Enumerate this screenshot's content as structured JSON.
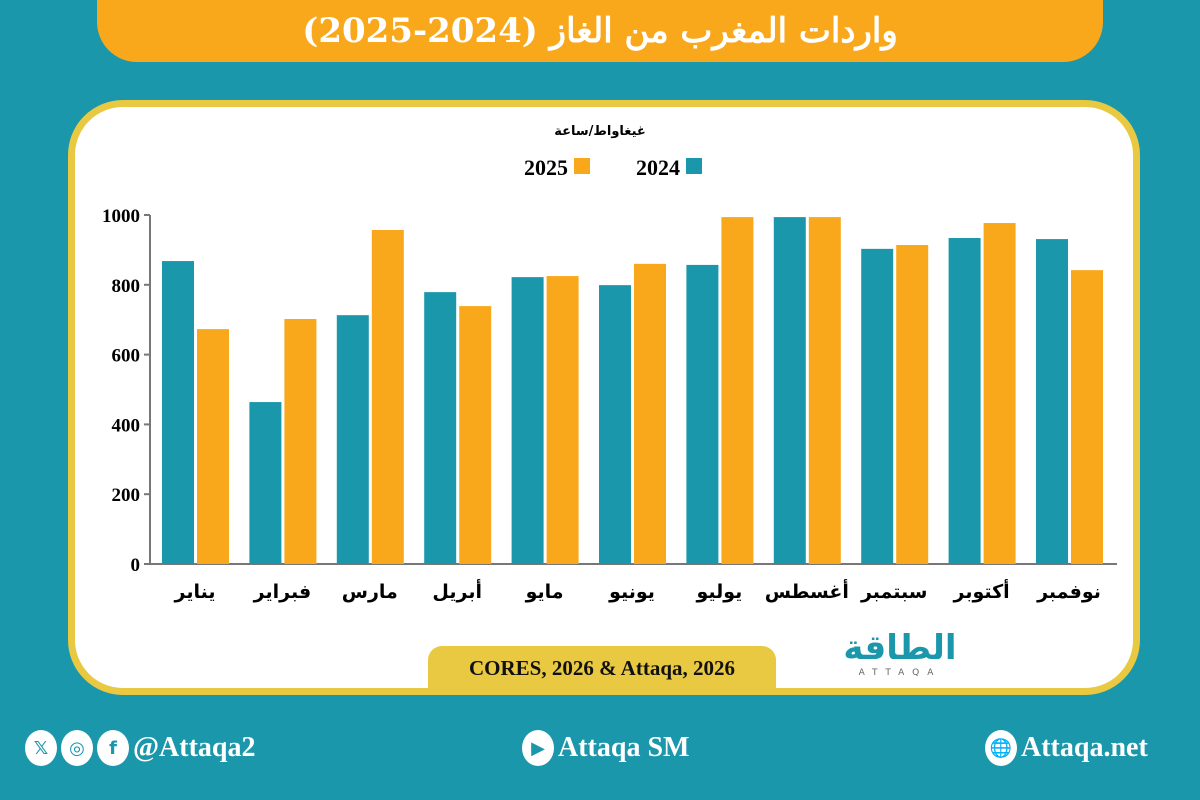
{
  "title": "واردات المغرب من الغاز (2024-2025)",
  "source": "CORES, 2026 & Attaqa, 2026",
  "logo": {
    "arabic": "الطاقة",
    "latin": "ATTAQA"
  },
  "footer": {
    "social_handle": "@Attaqa2",
    "youtube": "Attaqa SM",
    "website": "Attaqa.net"
  },
  "colors": {
    "background": "#1b97ab",
    "banner": "#f9a81c",
    "series_2024": "#1b97ab",
    "series_2025": "#f9a81c",
    "border": "#e9c842"
  },
  "chart_data": {
    "type": "bar",
    "ylabel": "غيغاواط/ساعة",
    "ylim": [
      0,
      1000
    ],
    "yticks": [
      0,
      200,
      400,
      600,
      800,
      1000
    ],
    "grid": false,
    "legend": "top-center",
    "categories": [
      "يناير",
      "فبراير",
      "مارس",
      "أبريل",
      "مايو",
      "يونيو",
      "يوليو",
      "أغسطس",
      "سبتمبر",
      "أكتوبر",
      "نوفمبر"
    ],
    "series": [
      {
        "name": "2024",
        "color": "#1b97ab",
        "values": [
          868,
          464,
          713,
          779,
          822,
          799,
          857,
          994,
          903,
          934,
          931
        ]
      },
      {
        "name": "2025",
        "color": "#f9a81c",
        "values": [
          673,
          702,
          957,
          739,
          825,
          860,
          994,
          994,
          914,
          977,
          842
        ]
      }
    ]
  }
}
